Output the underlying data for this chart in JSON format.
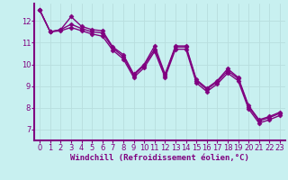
{
  "xlabel": "Windchill (Refroidissement éolien,°C)",
  "bg_color": "#c8f0f0",
  "line_color": "#800080",
  "xlim": [
    -0.5,
    23.5
  ],
  "ylim": [
    6.5,
    12.8
  ],
  "xticks": [
    0,
    1,
    2,
    3,
    4,
    5,
    6,
    7,
    8,
    9,
    10,
    11,
    12,
    13,
    14,
    15,
    16,
    17,
    18,
    19,
    20,
    21,
    22,
    23
  ],
  "yticks": [
    7,
    8,
    9,
    10,
    11,
    12
  ],
  "y_upper": [
    12.5,
    11.5,
    11.6,
    12.2,
    11.75,
    11.6,
    11.55,
    10.8,
    10.45,
    9.55,
    10.0,
    10.85,
    9.55,
    10.85,
    10.85,
    9.3,
    8.9,
    9.25,
    9.8,
    9.4,
    8.1,
    7.45,
    7.6,
    7.8
  ],
  "y_mid": [
    12.5,
    11.5,
    11.6,
    11.85,
    11.65,
    11.5,
    11.45,
    10.75,
    10.35,
    9.5,
    9.95,
    10.7,
    9.5,
    10.8,
    10.8,
    9.25,
    8.85,
    9.2,
    9.7,
    9.35,
    8.05,
    7.4,
    7.55,
    7.75
  ],
  "y_lower": [
    12.5,
    11.5,
    11.55,
    11.7,
    11.55,
    11.4,
    11.3,
    10.65,
    10.25,
    9.4,
    9.85,
    10.6,
    9.4,
    10.7,
    10.7,
    9.15,
    8.75,
    9.1,
    9.6,
    9.25,
    7.95,
    7.3,
    7.45,
    7.65
  ],
  "grid_color": "#b8dede",
  "marker": "D",
  "markersize": 2.5,
  "linewidth": 1.0,
  "xlabel_fontsize": 6.5,
  "tick_fontsize": 6.0,
  "font_color": "#800080",
  "spine_color": "#800080"
}
